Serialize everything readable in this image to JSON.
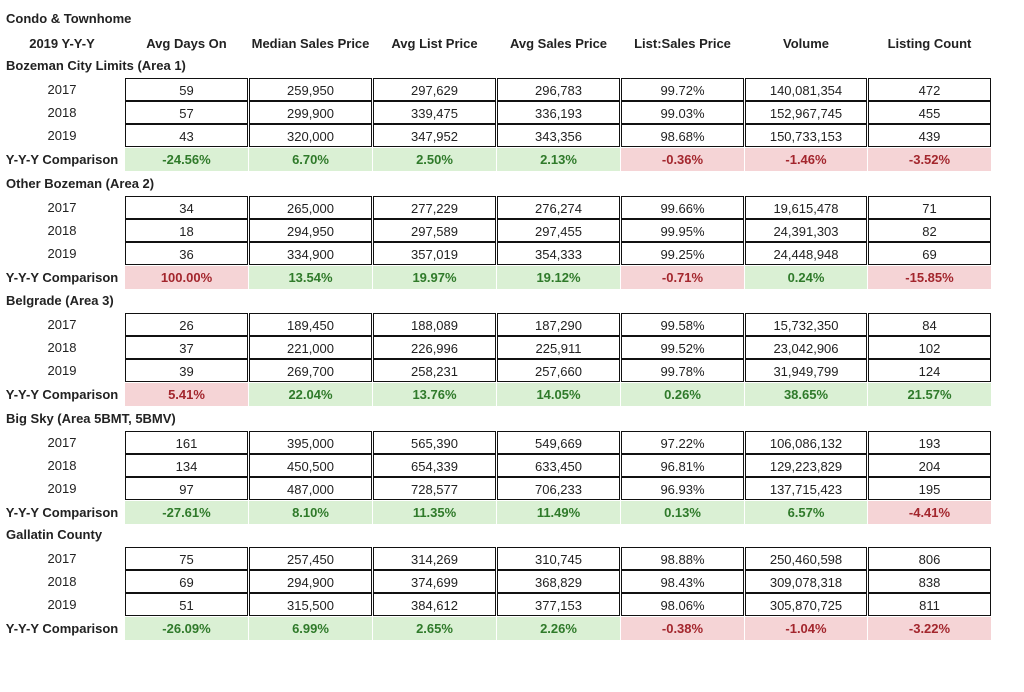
{
  "title": "Condo & Townhome",
  "headers": [
    "2019 Y-Y-Y",
    "Avg Days On",
    "Median Sales Price",
    "Avg List Price",
    "Avg Sales Price",
    "List:Sales Price",
    "Volume",
    "Listing Count"
  ],
  "comparison_label": "Y-Y-Y Comparison",
  "colors": {
    "positive_bg": "#daf0d4",
    "positive_text": "#2f7a2a",
    "negative_bg": "#f5d4d6",
    "negative_text": "#a3262d"
  },
  "sections": [
    {
      "name": "Bozeman City Limits (Area 1)",
      "rows": [
        [
          "2017",
          "59",
          "259,950",
          "297,629",
          "296,783",
          "99.72%",
          "140,081,354",
          "472"
        ],
        [
          "2018",
          "57",
          "299,900",
          "339,475",
          "336,193",
          "99.03%",
          "152,967,745",
          "455"
        ],
        [
          "2019",
          "43",
          "320,000",
          "347,952",
          "343,356",
          "98.68%",
          "150,733,153",
          "439"
        ]
      ],
      "comparison": [
        {
          "value": "-24.56%",
          "tone": "pos"
        },
        {
          "value": "6.70%",
          "tone": "pos"
        },
        {
          "value": "2.50%",
          "tone": "pos"
        },
        {
          "value": "2.13%",
          "tone": "pos"
        },
        {
          "value": "-0.36%",
          "tone": "neg"
        },
        {
          "value": "-1.46%",
          "tone": "neg"
        },
        {
          "value": "-3.52%",
          "tone": "neg"
        }
      ]
    },
    {
      "name": "Other Bozeman (Area 2)",
      "rows": [
        [
          "2017",
          "34",
          "265,000",
          "277,229",
          "276,274",
          "99.66%",
          "19,615,478",
          "71"
        ],
        [
          "2018",
          "18",
          "294,950",
          "297,589",
          "297,455",
          "99.95%",
          "24,391,303",
          "82"
        ],
        [
          "2019",
          "36",
          "334,900",
          "357,019",
          "354,333",
          "99.25%",
          "24,448,948",
          "69"
        ]
      ],
      "comparison": [
        {
          "value": "100.00%",
          "tone": "neg"
        },
        {
          "value": "13.54%",
          "tone": "pos"
        },
        {
          "value": "19.97%",
          "tone": "pos"
        },
        {
          "value": "19.12%",
          "tone": "pos"
        },
        {
          "value": "-0.71%",
          "tone": "neg"
        },
        {
          "value": "0.24%",
          "tone": "pos"
        },
        {
          "value": "-15.85%",
          "tone": "neg"
        }
      ]
    },
    {
      "name": "Belgrade (Area 3)",
      "rows": [
        [
          "2017",
          "26",
          "189,450",
          "188,089",
          "187,290",
          "99.58%",
          "15,732,350",
          "84"
        ],
        [
          "2018",
          "37",
          "221,000",
          "226,996",
          "225,911",
          "99.52%",
          "23,042,906",
          "102"
        ],
        [
          "2019",
          "39",
          "269,700",
          "258,231",
          "257,660",
          "99.78%",
          "31,949,799",
          "124"
        ]
      ],
      "comparison": [
        {
          "value": "5.41%",
          "tone": "neg"
        },
        {
          "value": "22.04%",
          "tone": "pos"
        },
        {
          "value": "13.76%",
          "tone": "pos"
        },
        {
          "value": "14.05%",
          "tone": "pos"
        },
        {
          "value": "0.26%",
          "tone": "pos"
        },
        {
          "value": "38.65%",
          "tone": "pos"
        },
        {
          "value": "21.57%",
          "tone": "pos"
        }
      ]
    },
    {
      "name": "Big Sky (Area 5BMT, 5BMV)",
      "rows": [
        [
          "2017",
          "161",
          "395,000",
          "565,390",
          "549,669",
          "97.22%",
          "106,086,132",
          "193"
        ],
        [
          "2018",
          "134",
          "450,500",
          "654,339",
          "633,450",
          "96.81%",
          "129,223,829",
          "204"
        ],
        [
          "2019",
          "97",
          "487,000",
          "728,577",
          "706,233",
          "96.93%",
          "137,715,423",
          "195"
        ]
      ],
      "comparison": [
        {
          "value": "-27.61%",
          "tone": "pos"
        },
        {
          "value": "8.10%",
          "tone": "pos"
        },
        {
          "value": "11.35%",
          "tone": "pos"
        },
        {
          "value": "11.49%",
          "tone": "pos"
        },
        {
          "value": "0.13%",
          "tone": "pos"
        },
        {
          "value": "6.57%",
          "tone": "pos"
        },
        {
          "value": "-4.41%",
          "tone": "neg"
        }
      ]
    },
    {
      "name": "Gallatin County",
      "rows": [
        [
          "2017",
          "75",
          "257,450",
          "314,269",
          "310,745",
          "98.88%",
          "250,460,598",
          "806"
        ],
        [
          "2018",
          "69",
          "294,900",
          "374,699",
          "368,829",
          "98.43%",
          "309,078,318",
          "838"
        ],
        [
          "2019",
          "51",
          "315,500",
          "384,612",
          "377,153",
          "98.06%",
          "305,870,725",
          "811"
        ]
      ],
      "comparison": [
        {
          "value": "-26.09%",
          "tone": "pos"
        },
        {
          "value": "6.99%",
          "tone": "pos"
        },
        {
          "value": "2.65%",
          "tone": "pos"
        },
        {
          "value": "2.26%",
          "tone": "pos"
        },
        {
          "value": "-0.38%",
          "tone": "neg"
        },
        {
          "value": "-1.04%",
          "tone": "neg"
        },
        {
          "value": "-3.22%",
          "tone": "neg"
        }
      ]
    }
  ]
}
